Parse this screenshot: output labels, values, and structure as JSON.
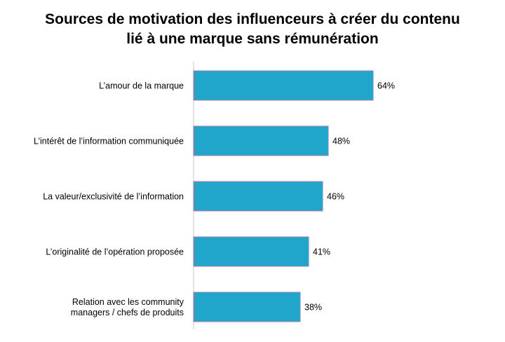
{
  "chart_data": {
    "type": "bar",
    "orientation": "horizontal",
    "title_lines": [
      "Sources de motivation des influenceurs à créer du contenu",
      "lié à une marque sans rémunération"
    ],
    "categories": [
      [
        "L’amour de la marque"
      ],
      [
        "L’intérêt de l’information communiquée"
      ],
      [
        "La valeur/exclusivité de l’information"
      ],
      [
        "L’originalité de l’opération proposée"
      ],
      [
        "Relation avec les community",
        "managers / chefs de produits"
      ]
    ],
    "values": [
      64,
      48,
      46,
      41,
      38
    ],
    "value_labels": [
      "64%",
      "48%",
      "46%",
      "41%",
      "38%"
    ],
    "xlim": [
      0,
      100
    ],
    "bar_color": "#1FA6CA",
    "bar_edge_color": "#B07AA8",
    "axis_color": "#D9D9D9",
    "grid": false,
    "legend": "none"
  }
}
